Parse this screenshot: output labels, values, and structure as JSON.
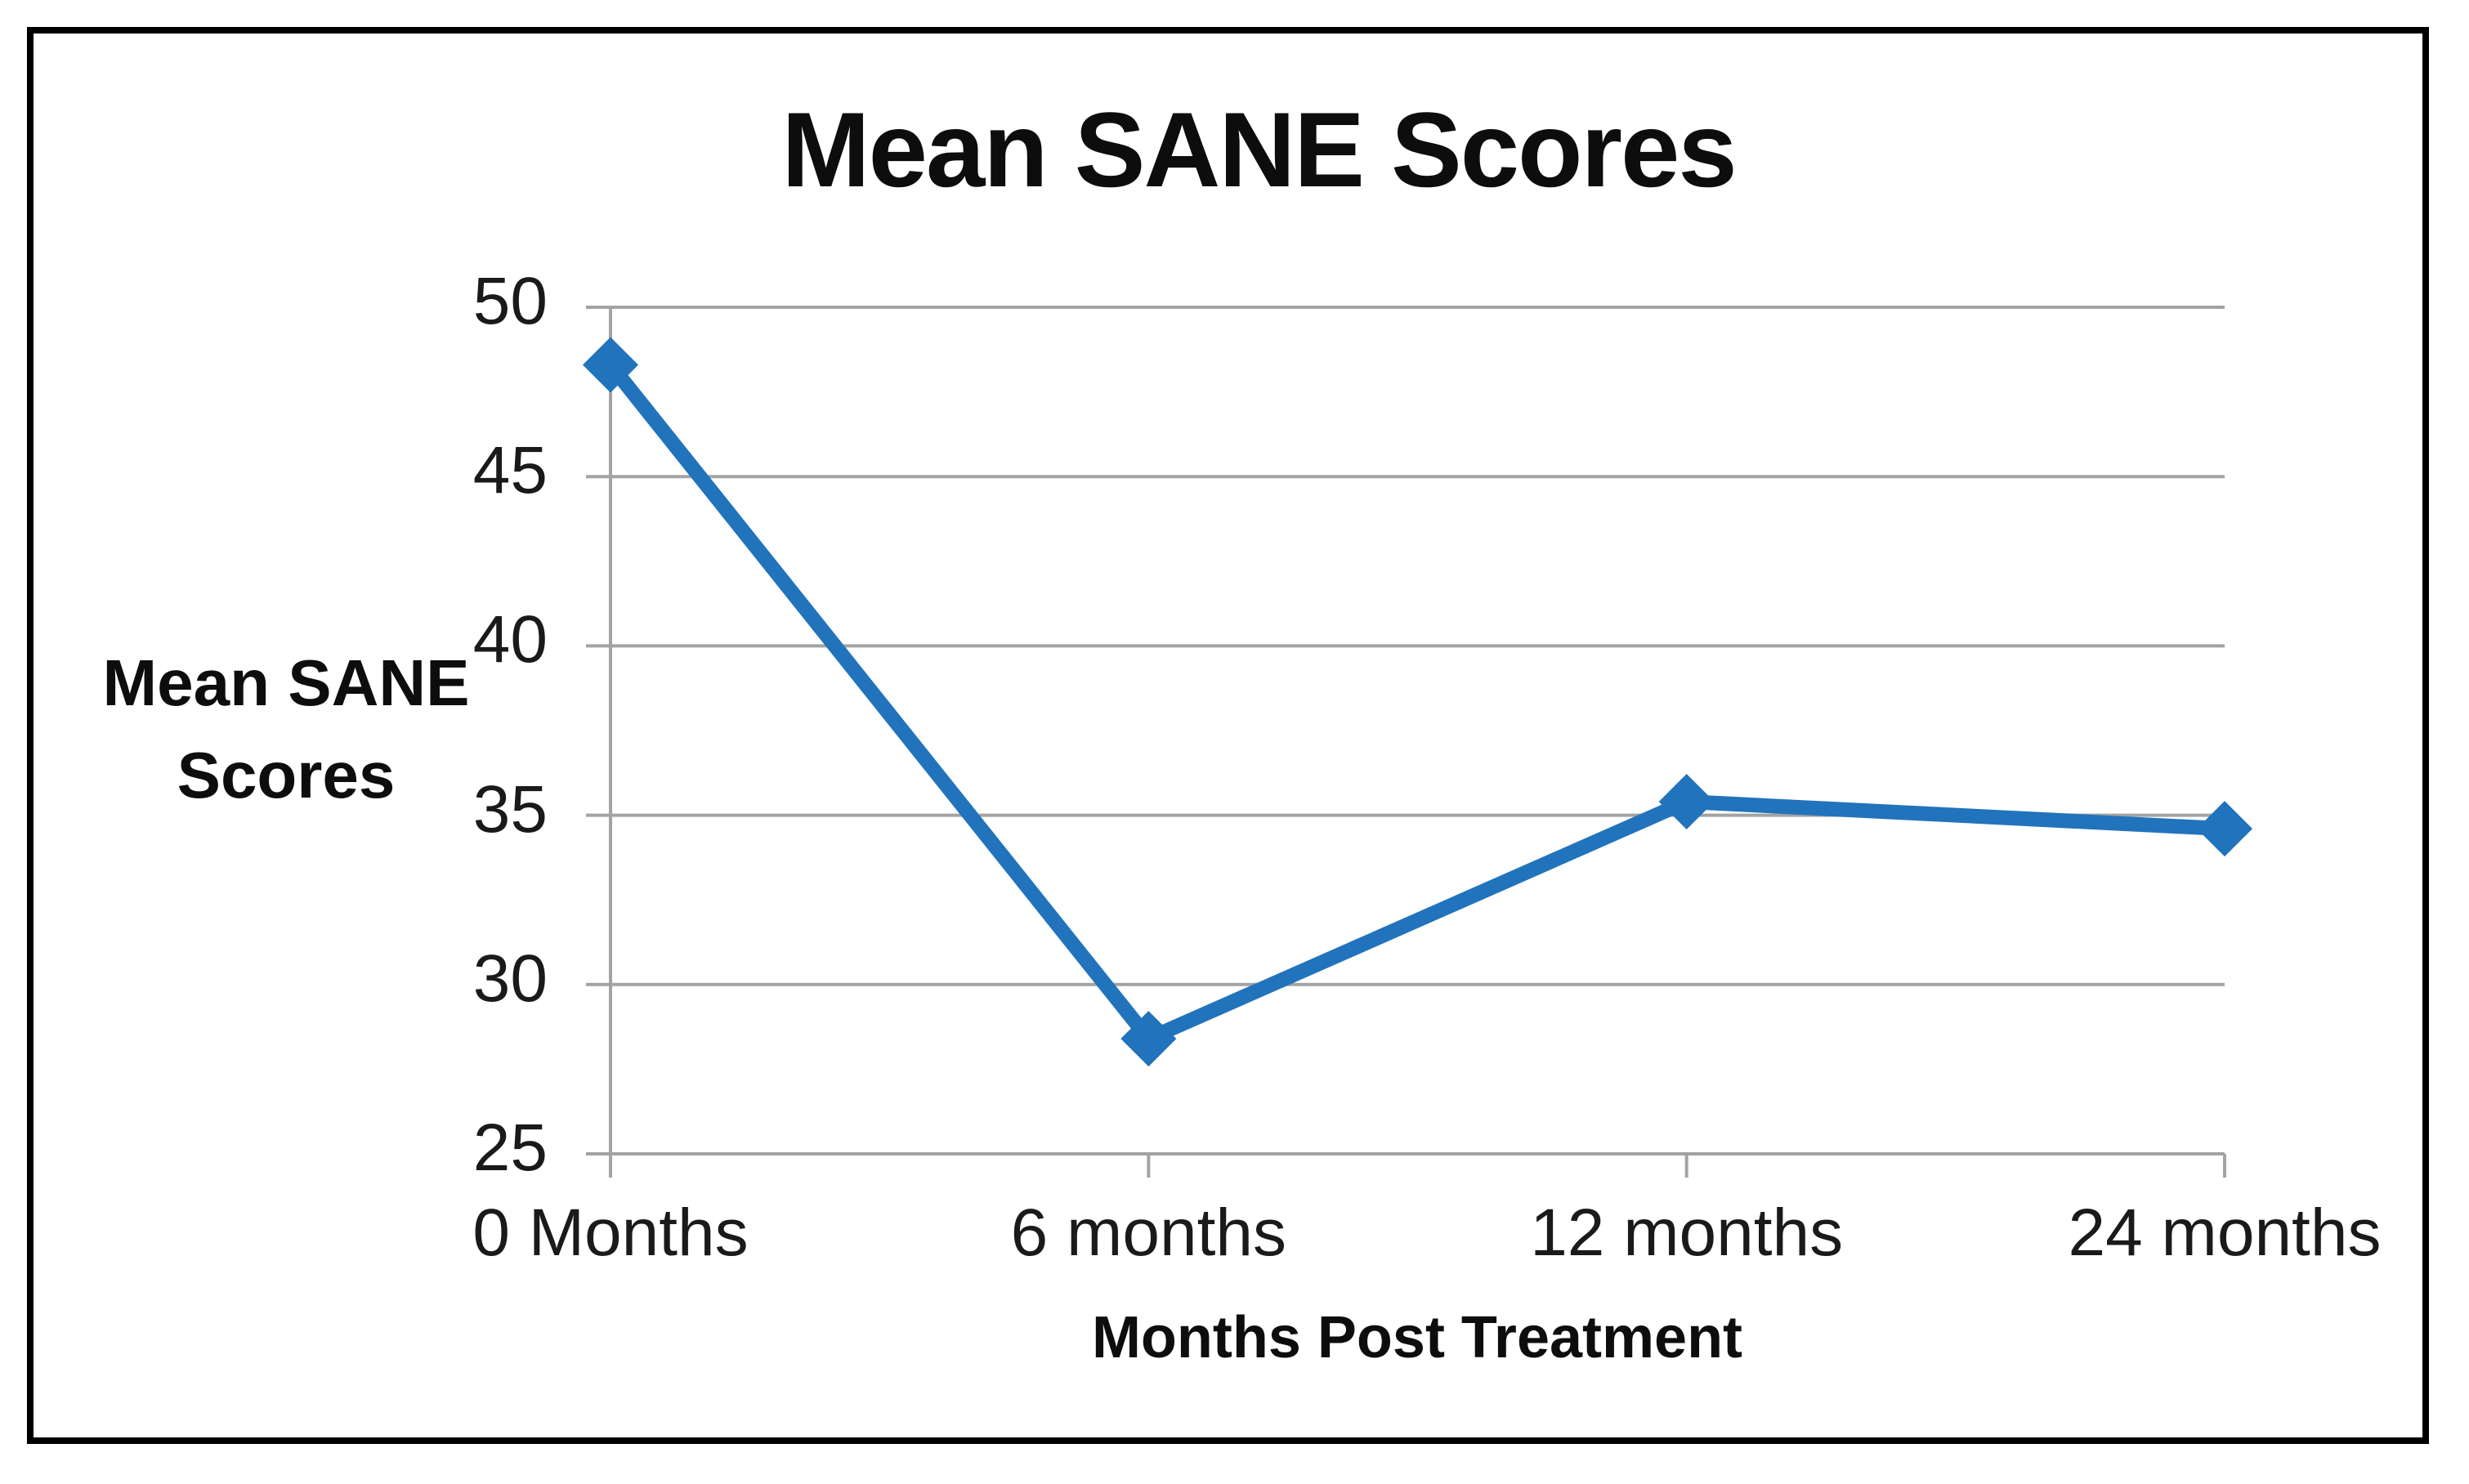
{
  "chart_data": {
    "type": "line",
    "title": "Mean SANE Scores",
    "xlabel": "Months Post Treatment",
    "ylabel": "Mean SANE\nScores",
    "categories": [
      "0 Months",
      "6 months",
      "12 months",
      "24 months"
    ],
    "series": [
      {
        "name": "Mean SANE Scores",
        "values": [
          48.3,
          28.4,
          35.4,
          34.6
        ]
      }
    ],
    "ylim": [
      25,
      50
    ],
    "yticks": [
      25,
      30,
      35,
      40,
      45,
      50
    ],
    "grid": "horizontal",
    "legend_position": "none",
    "line_color": "#2173BC",
    "marker": "diamond",
    "gridline_color": "#A3A3A3",
    "frame_color": "#000000",
    "text_color": "#0d0d0d"
  }
}
